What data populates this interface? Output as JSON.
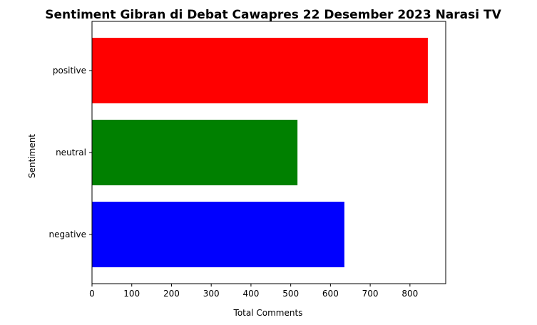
{
  "chart_data": {
    "type": "bar",
    "orientation": "horizontal",
    "title": "Sentiment Gibran di Debat Cawapres 22 Desember 2023 Narasi TV",
    "xlabel": "Total Comments",
    "ylabel": "Sentiment",
    "categories": [
      "negative",
      "neutral",
      "positive"
    ],
    "values": [
      635,
      517,
      845
    ],
    "colors": [
      "#0000ff",
      "#008000",
      "#ff0000"
    ],
    "xlim": [
      0,
      890
    ],
    "xticks": [
      0,
      100,
      200,
      300,
      400,
      500,
      600,
      700,
      800
    ],
    "grid": false,
    "legend": "none"
  }
}
